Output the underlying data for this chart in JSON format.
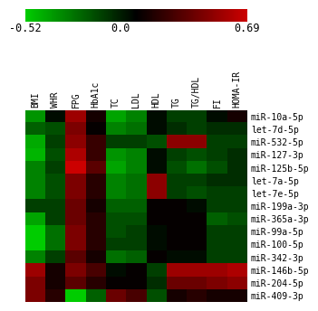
{
  "columns": [
    "BMI",
    "WHR",
    "FPG",
    "HbA1c",
    "TC",
    "LDL",
    "HDL",
    "TG",
    "TG/HDL",
    "FI",
    "HOMA-IR"
  ],
  "rows": [
    "miR-10a-5p",
    "let-7d-5p",
    "miR-532-5p",
    "miR-127-3p",
    "miR-125b-5p",
    "let-7a-5p",
    "let-7e-5p",
    "miR-199a-3p",
    "miR-365a-3p",
    "miR-99a-5p",
    "miR-100-5p",
    "miR-342-3p",
    "miR-146b-5p",
    "miR-204-5p",
    "miR-409-3p"
  ],
  "data": [
    [
      -0.35,
      0.05,
      0.55,
      0.15,
      -0.4,
      -0.3,
      0.05,
      -0.1,
      -0.1,
      0.05,
      0.15
    ],
    [
      -0.2,
      -0.15,
      0.45,
      0.1,
      -0.3,
      -0.25,
      0.05,
      -0.05,
      -0.1,
      -0.05,
      -0.05
    ],
    [
      -0.42,
      -0.1,
      0.5,
      0.25,
      -0.1,
      -0.1,
      -0.15,
      0.5,
      0.5,
      -0.1,
      -0.1
    ],
    [
      -0.45,
      -0.15,
      0.6,
      0.25,
      -0.35,
      -0.3,
      0.05,
      -0.1,
      -0.15,
      -0.1,
      -0.05
    ],
    [
      -0.3,
      -0.1,
      0.69,
      0.35,
      -0.4,
      -0.3,
      0.05,
      -0.15,
      -0.25,
      -0.15,
      -0.05
    ],
    [
      -0.3,
      -0.15,
      0.45,
      0.2,
      -0.3,
      -0.25,
      0.5,
      -0.1,
      -0.1,
      -0.05,
      -0.05
    ],
    [
      -0.3,
      -0.15,
      0.45,
      0.2,
      -0.3,
      -0.25,
      0.5,
      -0.1,
      -0.15,
      -0.1,
      -0.1
    ],
    [
      -0.1,
      -0.1,
      0.4,
      0.15,
      -0.2,
      -0.2,
      0.1,
      0.1,
      0.05,
      -0.1,
      -0.1
    ],
    [
      -0.4,
      -0.1,
      0.4,
      0.2,
      -0.15,
      -0.15,
      0.1,
      0.1,
      0.1,
      -0.2,
      -0.15
    ],
    [
      -0.52,
      -0.25,
      0.45,
      0.2,
      -0.15,
      -0.1,
      0.05,
      0.1,
      0.1,
      -0.1,
      -0.1
    ],
    [
      -0.52,
      -0.25,
      0.45,
      0.2,
      -0.1,
      -0.1,
      0.05,
      0.1,
      0.1,
      -0.1,
      -0.1
    ],
    [
      -0.3,
      -0.1,
      0.35,
      0.15,
      -0.25,
      -0.2,
      0.1,
      0.05,
      0.05,
      -0.1,
      -0.1
    ],
    [
      0.55,
      0.15,
      0.45,
      0.3,
      0.05,
      0.1,
      -0.1,
      0.55,
      0.55,
      0.55,
      0.6
    ],
    [
      0.45,
      0.15,
      0.35,
      0.2,
      0.1,
      0.1,
      -0.05,
      0.4,
      0.4,
      0.45,
      0.5
    ],
    [
      0.45,
      0.2,
      -0.52,
      -0.2,
      0.4,
      0.3,
      -0.15,
      0.15,
      0.2,
      0.15,
      0.15
    ]
  ],
  "vmin": -0.52,
  "vmax": 0.69,
  "cbar_ticks": [
    -0.52,
    0.0,
    0.69
  ],
  "cbar_labels": [
    "-0.52",
    "0.0",
    "0.69"
  ],
  "background_color": "#ffffff",
  "text_color": "#000000",
  "font_family": "monospace",
  "tick_fontsize": 7.0,
  "row_label_fontsize": 7.0,
  "colorbar_label_fontsize": 8.5,
  "cmap_colors": [
    "#00cc00",
    "#000000",
    "#cc0000"
  ]
}
